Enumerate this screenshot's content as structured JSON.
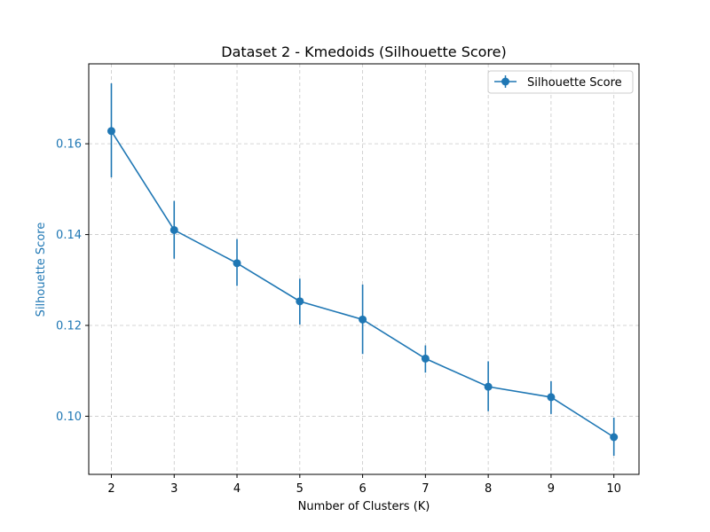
{
  "chart_data": {
    "type": "line",
    "title": "Dataset 2 - Kmedoids (Silhouette Score)",
    "xlabel": "Number of Clusters (K)",
    "ylabel": "Silhouette Score",
    "x": [
      2,
      3,
      4,
      5,
      6,
      7,
      8,
      9,
      10
    ],
    "xlim": [
      1.64,
      10.4
    ],
    "ylim": [
      0.0872,
      0.1776
    ],
    "yticks": [
      0.1,
      0.12,
      0.14,
      0.16
    ],
    "ytick_labels": [
      "0.10",
      "0.12",
      "0.14",
      "0.16"
    ],
    "grid": true,
    "legend_position": "upper right",
    "series": [
      {
        "name": "Silhouette Score",
        "color": "#1f77b4",
        "values": [
          0.1628,
          0.141,
          0.1337,
          0.1253,
          0.1213,
          0.1127,
          0.1065,
          0.1042,
          0.0954
        ],
        "err_low": [
          0.1526,
          0.1347,
          0.1287,
          0.1202,
          0.1137,
          0.1096,
          0.1011,
          0.1005,
          0.0913
        ],
        "err_high": [
          0.1733,
          0.1474,
          0.139,
          0.1303,
          0.129,
          0.1156,
          0.1121,
          0.1077,
          0.0997
        ]
      }
    ],
    "ylabel_color": "#1f77b4"
  }
}
